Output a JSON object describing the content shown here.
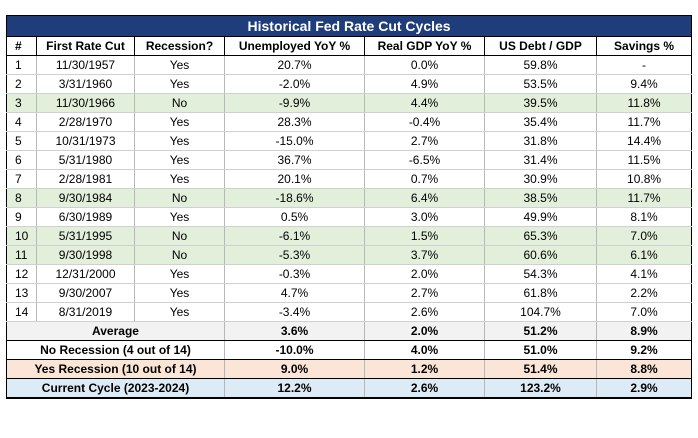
{
  "title": "Historical Fed Rate Cut Cycles",
  "headers": [
    "#",
    "First Rate Cut",
    "Recession?",
    "Unemployed YoY %",
    "Real GDP YoY %",
    "US Debt / GDP",
    "Savings %"
  ],
  "rows": [
    [
      "1",
      "11/30/1957",
      "Yes",
      "20.7%",
      "0.0%",
      "59.8%",
      "-"
    ],
    [
      "2",
      "3/31/1960",
      "Yes",
      "-2.0%",
      "4.9%",
      "53.5%",
      "9.4%"
    ],
    [
      "3",
      "11/30/1966",
      "No",
      "-9.9%",
      "4.4%",
      "39.5%",
      "11.8%"
    ],
    [
      "4",
      "2/28/1970",
      "Yes",
      "28.3%",
      "-0.4%",
      "35.4%",
      "11.7%"
    ],
    [
      "5",
      "10/31/1973",
      "Yes",
      "-15.0%",
      "2.7%",
      "31.8%",
      "14.4%"
    ],
    [
      "6",
      "5/31/1980",
      "Yes",
      "36.7%",
      "-6.5%",
      "31.4%",
      "11.5%"
    ],
    [
      "7",
      "2/28/1981",
      "Yes",
      "20.1%",
      "0.7%",
      "30.9%",
      "10.8%"
    ],
    [
      "8",
      "9/30/1984",
      "No",
      "-18.6%",
      "6.4%",
      "38.5%",
      "11.7%"
    ],
    [
      "9",
      "6/30/1989",
      "Yes",
      "0.5%",
      "3.0%",
      "49.9%",
      "8.1%"
    ],
    [
      "10",
      "5/31/1995",
      "No",
      "-6.1%",
      "1.5%",
      "65.3%",
      "7.0%"
    ],
    [
      "11",
      "9/30/1998",
      "No",
      "-5.3%",
      "3.7%",
      "60.6%",
      "6.1%"
    ],
    [
      "12",
      "12/31/2000",
      "Yes",
      "-0.3%",
      "2.0%",
      "54.3%",
      "4.1%"
    ],
    [
      "13",
      "9/30/2007",
      "Yes",
      "4.7%",
      "2.7%",
      "61.8%",
      "2.2%"
    ],
    [
      "14",
      "8/31/2019",
      "Yes",
      "-3.4%",
      "2.6%",
      "104.7%",
      "7.0%"
    ]
  ],
  "summary": [
    {
      "label": "Average",
      "values": [
        "3.6%",
        "2.0%",
        "51.2%",
        "8.9%"
      ]
    },
    {
      "label": "No Recession (4 out of 14)",
      "values": [
        "-10.0%",
        "4.0%",
        "51.0%",
        "9.2%"
      ]
    },
    {
      "label": "Yes Recession (10 out of 14)",
      "values": [
        "9.0%",
        "1.2%",
        "51.4%",
        "8.8%"
      ]
    },
    {
      "label": "Current Cycle (2023-2024)",
      "values": [
        "12.2%",
        "2.6%",
        "123.2%",
        "2.9%"
      ]
    }
  ],
  "colors": {
    "title_bg": "#1f3d7a",
    "no_recession_row": "#e2efda",
    "average_row": "#f2f2f2",
    "yes_recession_row": "#fbe5d6",
    "current_cycle_row": "#ddebf7"
  }
}
